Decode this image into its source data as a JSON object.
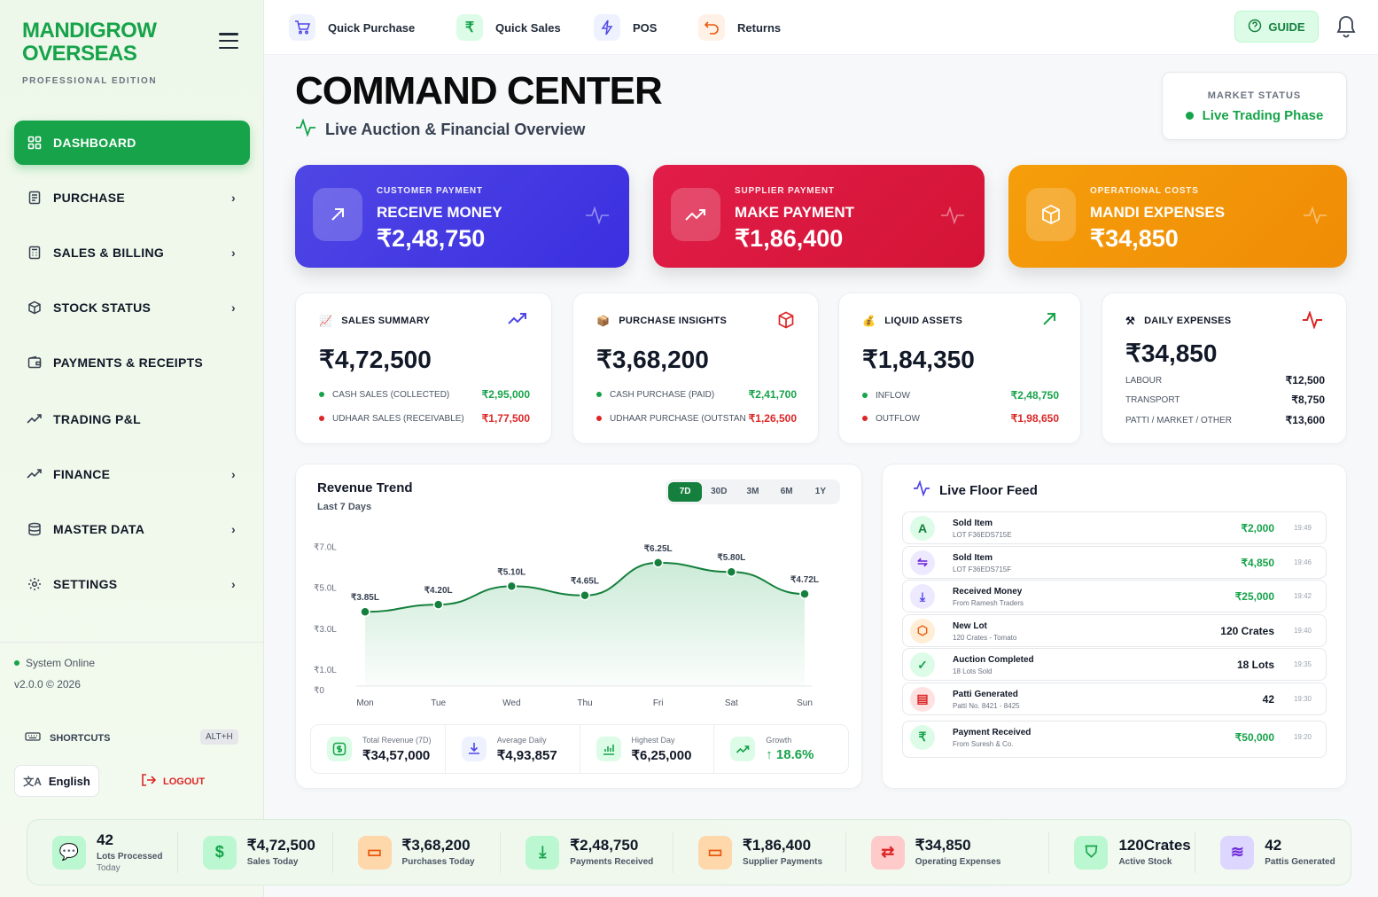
{
  "brand": {
    "line1": "MANDIGROW",
    "line2": "OVERSEAS",
    "edition": "PROFESSIONAL EDITION"
  },
  "sidebar": {
    "items": [
      {
        "label": "DASHBOARD",
        "icon": "grid-icon",
        "active": true
      },
      {
        "label": "PURCHASE",
        "icon": "receipt-icon"
      },
      {
        "label": "SALES & BILLING",
        "icon": "calculator-icon"
      },
      {
        "label": "STOCK STATUS",
        "icon": "box-icon"
      },
      {
        "label": "PAYMENTS & RECEIPTS",
        "icon": "wallet-icon"
      },
      {
        "label": "TRADING P&L",
        "icon": "trending-up-icon"
      },
      {
        "label": "FINANCE",
        "icon": "trending-up-icon"
      },
      {
        "label": "MASTER DATA",
        "icon": "database-icon"
      },
      {
        "label": "SETTINGS",
        "icon": "gear-icon"
      }
    ],
    "status": "System Online",
    "version": "v2.0.0 © 2026",
    "shortcuts": "SHORTCUTS",
    "shortcut_key": "ALT+H",
    "language": "English",
    "logout": "LOGOUT"
  },
  "topbar": {
    "items": [
      {
        "label": "Quick Purchase",
        "icon": "cart-icon"
      },
      {
        "label": "Quick Sales",
        "icon": "rupee-icon"
      },
      {
        "label": "POS",
        "icon": "bolt-icon"
      },
      {
        "label": "Returns",
        "icon": "undo-icon"
      }
    ],
    "guide": "GUIDE"
  },
  "header": {
    "title": "COMMAND CENTER",
    "subtitle": "Live Auction & Financial Overview"
  },
  "market": {
    "label": "MARKET STATUS",
    "value": "Live Trading Phase"
  },
  "actions": [
    {
      "kicker": "CUSTOMER PAYMENT",
      "title": "RECEIVE MONEY",
      "value": "₹2,48,750",
      "color": "#4338e6"
    },
    {
      "kicker": "SUPPLIER PAYMENT",
      "title": "MAKE PAYMENT",
      "value": "₹1,86,400",
      "color": "#dc1e3c"
    },
    {
      "kicker": "OPERATIONAL COSTS",
      "title": "MANDI EXPENSES",
      "value": "₹34,850",
      "color": "#f59109"
    }
  ],
  "stats": {
    "sales": {
      "title": "SALES SUMMARY",
      "value": "₹4,72,500",
      "rows": [
        {
          "label": "CASH SALES (COLLECTED)",
          "value": "₹2,95,000"
        },
        {
          "label": "UDHAAR SALES (RECEIVABLE)",
          "value": "₹1,77,500"
        }
      ]
    },
    "purchase": {
      "title": "PURCHASE INSIGHTS",
      "value": "₹3,68,200",
      "rows": [
        {
          "label": "CASH PURCHASE (PAID)",
          "value": "₹2,41,700"
        },
        {
          "label": "UDHAAR PURCHASE (OUTSTANDING)",
          "value": "₹1,26,500"
        }
      ]
    },
    "liquid": {
      "title": "LIQUID ASSETS",
      "value": "₹1,84,350",
      "rows": [
        {
          "label": "INFLOW",
          "value": "₹2,48,750"
        },
        {
          "label": "OUTFLOW",
          "value": "₹1,98,650"
        }
      ]
    },
    "expenses": {
      "title": "DAILY EXPENSES",
      "value": "₹34,850",
      "rows": [
        {
          "label": "LABOUR",
          "value": "₹12,500"
        },
        {
          "label": "TRANSPORT",
          "value": "₹8,750"
        },
        {
          "label": "PATTI / MARKET / OTHER",
          "value": "₹13,600"
        }
      ]
    }
  },
  "revenue": {
    "title": "Revenue Trend",
    "subtitle": "Last 7 Days",
    "ranges": [
      "7D",
      "30D",
      "3M",
      "6M",
      "1Y"
    ],
    "selected": "7D",
    "summary": [
      {
        "label": "Total Revenue (7D)",
        "value": "₹34,57,000"
      },
      {
        "label": "Average Daily",
        "value": "₹4,93,857"
      },
      {
        "label": "Highest Day",
        "value": "₹6,25,000"
      },
      {
        "label": "Growth",
        "value": "↑ 18.6%"
      }
    ]
  },
  "chart_data": {
    "type": "area",
    "x": [
      "Mon",
      "Tue",
      "Wed",
      "Thu",
      "Fri",
      "Sat",
      "Sun"
    ],
    "values": [
      3.85,
      4.2,
      5.1,
      4.65,
      6.25,
      5.8,
      4.72
    ],
    "labels": [
      "₹3.85L",
      "₹4.20L",
      "₹5.10L",
      "₹4.65L",
      "₹6.25L",
      "₹5.80L",
      "₹4.72L"
    ],
    "yticks": [
      "₹0",
      "₹1.0L",
      "₹3.0L",
      "₹5.0L",
      "₹7.0L"
    ],
    "ytick_values": [
      0,
      1,
      3,
      5,
      7
    ],
    "ylim": [
      0,
      7.5
    ],
    "color": "#15803d"
  },
  "feed": {
    "title": "Live Floor Feed",
    "items": [
      {
        "icon": "A",
        "title": "Sold Item",
        "sub": "LOT F36EDS715E",
        "value": "₹2,000",
        "time": "19:49",
        "green": true,
        "tint": "#dcfce7",
        "fg": "#15803d"
      },
      {
        "icon": "⇋",
        "title": "Sold Item",
        "sub": "LOT F36EDS715F",
        "value": "₹4,850",
        "time": "19:46",
        "green": true,
        "tint": "#ede9fe",
        "fg": "#6d28d9"
      },
      {
        "icon": "⤓",
        "title": "Received Money",
        "sub": "From Ramesh Traders",
        "value": "₹25,000",
        "time": "19:42",
        "green": true,
        "tint": "#ede9fe",
        "fg": "#4f46e5"
      },
      {
        "icon": "⬡",
        "title": "New Lot",
        "sub": "120 Crates - Tomato",
        "value": "120 Crates",
        "time": "19:40",
        "green": false,
        "tint": "#ffedd5",
        "fg": "#ea580c"
      },
      {
        "icon": "✓",
        "title": "Auction Completed",
        "sub": "18 Lots Sold",
        "value": "18 Lots",
        "time": "19:35",
        "green": false,
        "tint": "#dcfce7",
        "fg": "#16a34a"
      },
      {
        "icon": "▤",
        "title": "Patti Generated",
        "sub": "Patti No. 8421 - 8425",
        "value": "42",
        "time": "19:30",
        "green": false,
        "tint": "#fee2e2",
        "fg": "#dc2626"
      },
      {
        "icon": "₹",
        "title": "Payment Received",
        "sub": "From Suresh & Co.",
        "value": "₹50,000",
        "time": "19:20",
        "green": true,
        "tint": "#dcfce7",
        "fg": "#16a34a"
      }
    ]
  },
  "bottom": [
    {
      "value": "42",
      "label": "Lots Processed",
      "label2": "Today",
      "icon": "chat-icon"
    },
    {
      "value": "₹4,72,500",
      "label": "Sales Today",
      "icon": "dollar-icon"
    },
    {
      "value": "₹3,68,200",
      "label": "Purchases Today",
      "icon": "card-icon"
    },
    {
      "value": "₹2,48,750",
      "label": "Payments Received",
      "icon": "download-icon"
    },
    {
      "value": "₹1,86,400",
      "label": "Supplier Payments",
      "icon": "card-icon"
    },
    {
      "value": "₹34,850",
      "label": "Operating Expenses",
      "icon": "exchange-icon"
    },
    {
      "value": "120Crates",
      "label": "Active Stock",
      "icon": "bag-icon"
    },
    {
      "value": "42",
      "label": "Pattis Generated",
      "icon": "waves-icon"
    }
  ]
}
